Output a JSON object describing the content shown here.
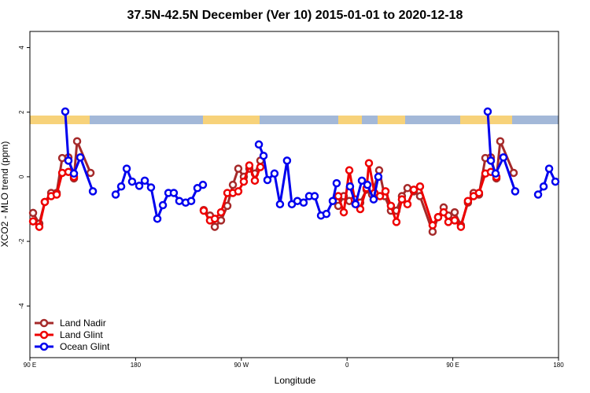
{
  "chart_data": {
    "type": "line",
    "title": "37.5N-42.5N December (Ver 10)   2015-01-01 to 2020-12-18",
    "xlabel": "Longitude",
    "ylabel": "XCO2 - MLO trend (ppm)",
    "xlim": [
      90,
      540
    ],
    "ylim": [
      -5.6,
      4.5
    ],
    "xticks": [
      {
        "value": 90,
        "label": "90 E"
      },
      180,
      {
        "value": 270,
        "label": "90 W"
      },
      {
        "value": 360,
        "label": "0"
      },
      {
        "value": 450,
        "label": "90 E"
      },
      {
        "value": 540,
        "label": "180"
      }
    ],
    "yticks": [
      -4,
      -2,
      0,
      2,
      4
    ],
    "legend": "bottom-left",
    "series": [
      {
        "name": "Land Nadir",
        "color": "#a52a2a",
        "x": [
          92.7,
          98.0,
          102.7,
          108.1,
          112.8,
          117.5,
          122.8,
          127.5,
          130.2,
          141.6,
          null,
          238.0,
          243.3,
          247.4,
          252.7,
          258.1,
          262.8,
          267.4,
          272.1,
          276.8,
          281.5,
          286.2,
          null,
          352.5,
          357.2,
          361.9,
          366.5,
          371.2,
          376.6,
          381.3,
          387.3,
          392.0,
          397.3,
          402.0,
          406.7,
          411.4,
          416.8,
          422.1,
          432.8,
          437.5,
          442.2,
          446.2,
          451.6,
          456.9,
          462.9,
          467.7,
          472.3,
          477.7,
          482.4,
          487.1,
          490.4,
          501.8
        ],
        "values": [
          -1.12,
          -1.45,
          -0.78,
          -0.5,
          -0.5,
          0.58,
          0.6,
          -0.05,
          1.1,
          0.12,
          null,
          -1.03,
          -1.2,
          -1.55,
          -1.35,
          -0.9,
          -0.25,
          0.25,
          0.0,
          0.25,
          0.1,
          0.5,
          null,
          -0.9,
          -0.6,
          -0.75,
          -0.8,
          -0.8,
          -0.4,
          -0.55,
          0.2,
          -0.6,
          -1.05,
          -1.05,
          -0.6,
          -0.35,
          -0.45,
          -0.6,
          -1.7,
          -1.25,
          -0.95,
          -1.2,
          -1.1,
          -1.5,
          -0.8,
          -0.5,
          -0.55,
          0.58,
          0.6,
          -0.05,
          1.1,
          0.12
        ]
      },
      {
        "name": "Land Glint",
        "color": "#ee0000",
        "x": [
          92.7,
          98.0,
          102.7,
          108.1,
          112.8,
          117.5,
          122.8,
          127.5,
          null,
          238.0,
          243.3,
          247.4,
          252.7,
          258.1,
          262.8,
          267.4,
          272.1,
          276.8,
          281.5,
          286.2,
          null,
          352.5,
          357.2,
          361.9,
          366.5,
          371.2,
          376.6,
          378.6,
          383.3,
          388.0,
          392.7,
          397.3,
          402.0,
          406.7,
          411.4,
          416.8,
          422.1,
          432.8,
          437.5,
          442.2,
          446.2,
          451.6,
          456.9,
          462.9,
          467.7,
          472.3,
          477.7,
          482.4,
          487.1
        ],
        "values": [
          -1.38,
          -1.55,
          -0.78,
          -0.6,
          -0.55,
          0.12,
          0.15,
          0.0,
          null,
          -1.05,
          -1.35,
          -1.3,
          -1.1,
          -0.5,
          -0.5,
          -0.45,
          -0.15,
          0.35,
          -0.12,
          0.3,
          null,
          -0.6,
          -1.1,
          0.2,
          -0.7,
          -1.0,
          -0.35,
          0.42,
          -0.5,
          -0.6,
          -0.45,
          -0.9,
          -1.4,
          -0.7,
          -0.85,
          -0.4,
          -0.3,
          -1.5,
          -1.25,
          -1.1,
          -1.4,
          -1.35,
          -1.55,
          -0.75,
          -0.6,
          -0.5,
          0.1,
          0.15,
          0.0
        ]
      },
      {
        "name": "Ocean Glint",
        "color": "#0000ee",
        "x": [
          120.1,
          122.8,
          127.5,
          132.9,
          143.6,
          null,
          163.0,
          167.7,
          172.4,
          177.0,
          183.1,
          187.8,
          193.1,
          198.5,
          203.2,
          207.9,
          212.5,
          217.2,
          222.6,
          227.3,
          232.6,
          237.3,
          null,
          284.9,
          288.9,
          292.2,
          298.2,
          302.9,
          308.9,
          313.0,
          317.7,
          323.0,
          327.7,
          332.4,
          337.8,
          342.4,
          347.8,
          351.1,
          null,
          362.5,
          367.2,
          372.6,
          377.3,
          382.6,
          386.6,
          null,
          479.7,
          482.4,
          486.4,
          493.1,
          503.1,
          null,
          522.6,
          527.3,
          532.0,
          537.3
        ],
        "values": [
          2.02,
          0.5,
          0.1,
          0.6,
          -0.45,
          null,
          -0.55,
          -0.3,
          0.25,
          -0.15,
          -0.28,
          -0.12,
          -0.33,
          -1.3,
          -0.88,
          -0.5,
          -0.5,
          -0.75,
          -0.8,
          -0.75,
          -0.35,
          -0.25,
          null,
          1.0,
          0.65,
          -0.1,
          0.1,
          -0.85,
          0.5,
          -0.85,
          -0.75,
          -0.8,
          -0.6,
          -0.6,
          -1.2,
          -1.15,
          -0.75,
          -0.2,
          null,
          -0.3,
          -0.85,
          -0.12,
          -0.25,
          -0.7,
          0.0,
          null,
          2.02,
          0.5,
          0.1,
          0.6,
          -0.45,
          null,
          -0.55,
          -0.3,
          0.25,
          -0.15
        ]
      }
    ]
  }
}
